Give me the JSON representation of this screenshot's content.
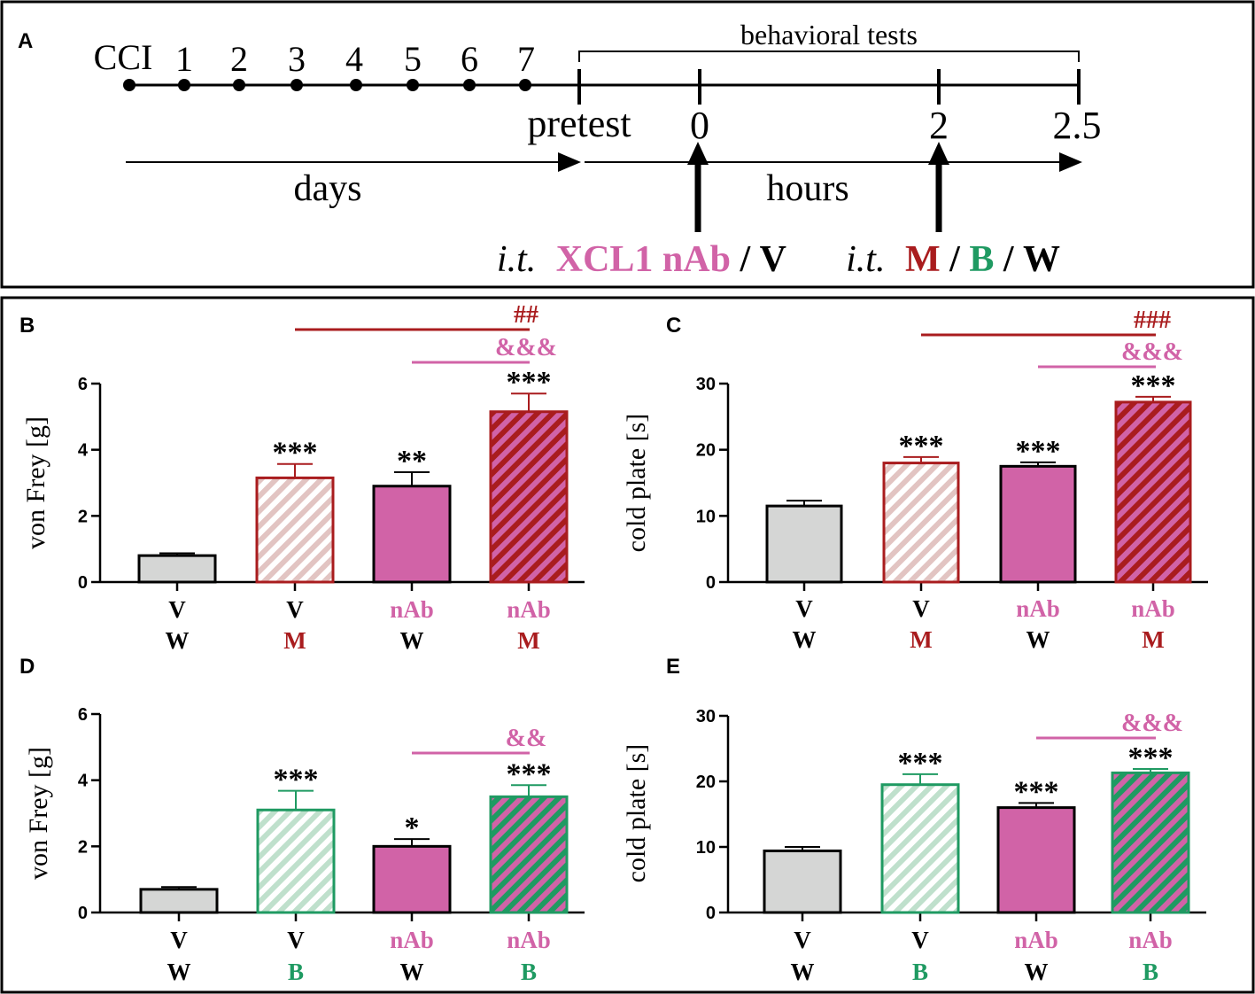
{
  "colors": {
    "gray": "#d5d6d5",
    "magenta": "#d163a7",
    "dark_red": "#a91c1e",
    "green": "#1f9a62",
    "black": "#000000"
  },
  "timeline": {
    "panel_label": "A",
    "day_labels": [
      "CCI",
      "1",
      "2",
      "3",
      "4",
      "5",
      "6",
      "7"
    ],
    "behavioral_tests": "behavioral tests",
    "pretest": "pretest",
    "hour_labels": [
      "0",
      "2",
      "2.5"
    ],
    "days": "days",
    "hours": "hours",
    "injection1": {
      "prefix": "i.t.",
      "drug": "XCL1 nAb",
      "sep": "/",
      "vehicle": "V"
    },
    "injection2": {
      "prefix": "i.t.",
      "m": "M",
      "sep1": "/",
      "b": "B",
      "sep2": "/",
      "w": "W"
    }
  },
  "chart_data": [
    {
      "panel": "B",
      "type": "bar",
      "ylabel": "von Frey [g]",
      "ylim": [
        0,
        6
      ],
      "yticks": [
        0,
        2,
        4,
        6
      ],
      "categories_top": [
        "V",
        "V",
        "nAb",
        "nAb"
      ],
      "categories_bottom": [
        "W",
        "M",
        "W",
        "M"
      ],
      "values": [
        0.8,
        3.15,
        2.9,
        5.15
      ],
      "errors": [
        0.07,
        0.42,
        0.42,
        0.55
      ],
      "significance": [
        "",
        "***",
        "**",
        "***"
      ],
      "comparisons": [
        {
          "from": 1,
          "to": 3,
          "label": "##",
          "color": "dark_red"
        },
        {
          "from": 2,
          "to": 3,
          "label": "&&&",
          "color": "magenta"
        }
      ]
    },
    {
      "panel": "C",
      "type": "bar",
      "ylabel": "cold plate [s]",
      "ylim": [
        0,
        30
      ],
      "yticks": [
        0,
        10,
        20,
        30
      ],
      "categories_top": [
        "V",
        "V",
        "nAb",
        "nAb"
      ],
      "categories_bottom": [
        "W",
        "M",
        "W",
        "M"
      ],
      "values": [
        11.5,
        18.0,
        17.5,
        27.2
      ],
      "errors": [
        0.8,
        0.9,
        0.6,
        0.8
      ],
      "significance": [
        "",
        "***",
        "***",
        "***"
      ],
      "comparisons": [
        {
          "from": 1,
          "to": 3,
          "label": "###",
          "color": "dark_red"
        },
        {
          "from": 2,
          "to": 3,
          "label": "&&&",
          "color": "magenta"
        }
      ]
    },
    {
      "panel": "D",
      "type": "bar",
      "ylabel": "von Frey [g]",
      "ylim": [
        0,
        6
      ],
      "yticks": [
        0,
        2,
        4,
        6
      ],
      "categories_top": [
        "V",
        "V",
        "nAb",
        "nAb"
      ],
      "categories_bottom": [
        "W",
        "B",
        "W",
        "B"
      ],
      "values": [
        0.7,
        3.1,
        2.0,
        3.5
      ],
      "errors": [
        0.07,
        0.58,
        0.22,
        0.35
      ],
      "significance": [
        "",
        "***",
        "*",
        "***"
      ],
      "comparisons": [
        {
          "from": 2,
          "to": 3,
          "label": "&&",
          "color": "magenta"
        }
      ]
    },
    {
      "panel": "E",
      "type": "bar",
      "ylabel": "cold plate [s]",
      "ylim": [
        0,
        30
      ],
      "yticks": [
        0,
        10,
        20,
        30
      ],
      "categories_top": [
        "V",
        "V",
        "nAb",
        "nAb"
      ],
      "categories_bottom": [
        "W",
        "B",
        "W",
        "B"
      ],
      "values": [
        9.4,
        19.5,
        16.0,
        21.3
      ],
      "errors": [
        0.6,
        1.6,
        0.7,
        0.6
      ],
      "significance": [
        "",
        "***",
        "***",
        "***"
      ],
      "comparisons": [
        {
          "from": 2,
          "to": 3,
          "label": "&&&",
          "color": "magenta"
        }
      ]
    }
  ]
}
